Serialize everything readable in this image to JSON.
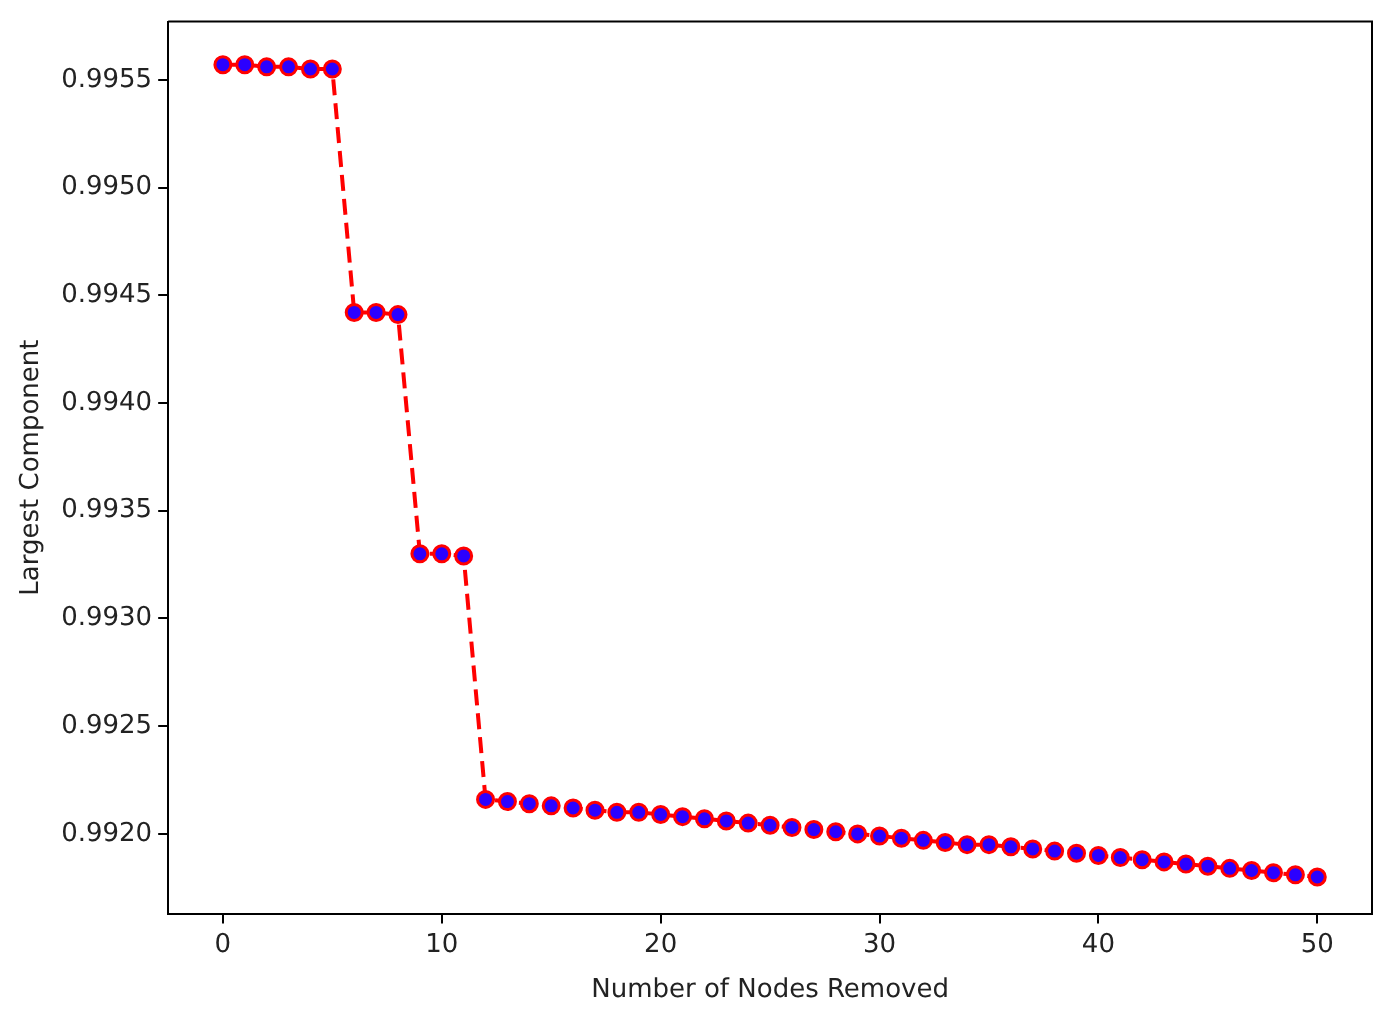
{
  "chart_data": {
    "type": "line",
    "xlabel": "Number of Nodes Removed",
    "ylabel": "Largest Component",
    "x": [
      0,
      1,
      2,
      3,
      4,
      5,
      6,
      7,
      8,
      9,
      10,
      11,
      12,
      13,
      14,
      15,
      16,
      17,
      18,
      19,
      20,
      21,
      22,
      23,
      24,
      25,
      26,
      27,
      28,
      29,
      30,
      31,
      32,
      33,
      34,
      35,
      36,
      37,
      38,
      39,
      40,
      41,
      42,
      43,
      44,
      45,
      46,
      47,
      48,
      49,
      50
    ],
    "series": [
      {
        "color": "#ff0000",
        "values": [
          0.99557,
          0.99557,
          0.99556,
          0.99556,
          0.99555,
          0.99555,
          0.99442,
          0.99442,
          0.99441,
          0.9933,
          0.9933,
          0.99329,
          0.99216,
          0.99215,
          0.99214,
          0.99213,
          0.99212,
          0.99211,
          0.9921,
          0.9921,
          0.99209,
          0.99208,
          0.99207,
          0.99206,
          0.99205,
          0.99204,
          0.99203,
          0.99202,
          0.99201,
          0.992,
          0.99199,
          0.99198,
          0.99197,
          0.99196,
          0.99195,
          0.99195,
          0.99194,
          0.99193,
          0.99192,
          0.99191,
          0.9919,
          0.99189,
          0.99188,
          0.99187,
          0.99186,
          0.99185,
          0.99184,
          0.99183,
          0.99182,
          0.99181,
          0.9918
        ]
      }
    ],
    "marker": "circle",
    "line_style": "dashed",
    "grid": false,
    "legend": false,
    "xlim": [
      -2.5,
      52.5
    ],
    "xticks": [
      0,
      10,
      20,
      30,
      40,
      50
    ],
    "ylim": [
      0.99163,
      0.99577
    ],
    "yticks": [
      {
        "value": 0.992,
        "label": "0.9920"
      },
      {
        "value": 0.9925,
        "label": "0.9925"
      },
      {
        "value": 0.993,
        "label": "0.9930"
      },
      {
        "value": 0.9935,
        "label": "0.9935"
      },
      {
        "value": 0.994,
        "label": "0.9940"
      },
      {
        "value": 0.9945,
        "label": "0.9945"
      },
      {
        "value": 0.995,
        "label": "0.9950"
      },
      {
        "value": 0.9955,
        "label": "0.9955"
      }
    ]
  }
}
